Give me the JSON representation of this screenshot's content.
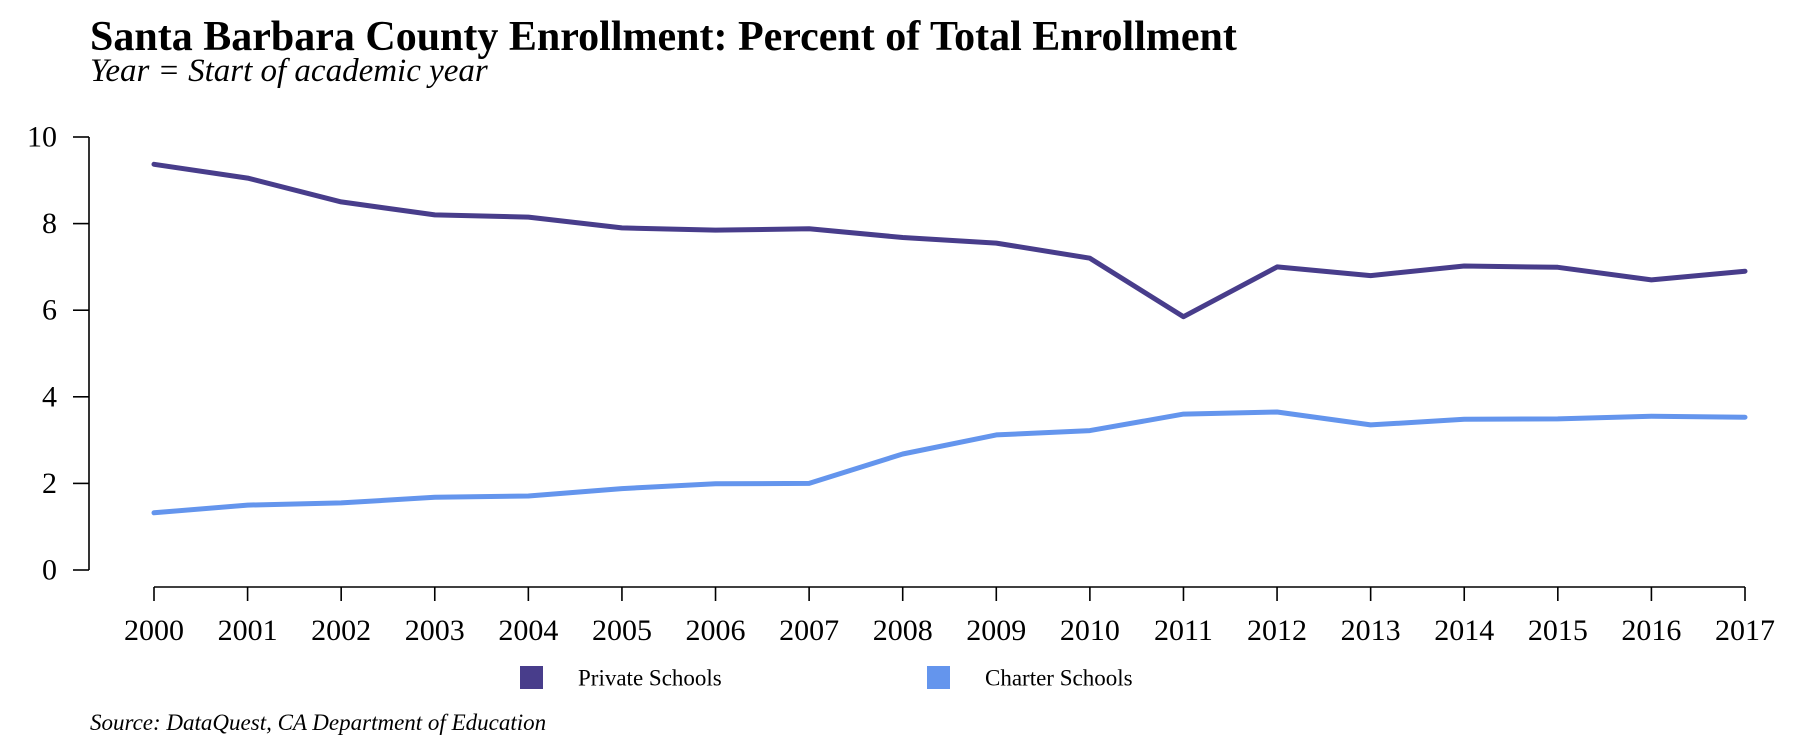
{
  "chart_data": {
    "type": "line",
    "title": "Santa Barbara County Enrollment: Percent of Total Enrollment",
    "subtitle": "Year = Start of academic year",
    "source": "Source: DataQuest, CA Department of Education",
    "xlabel": "",
    "ylabel": "",
    "x": [
      "2000",
      "2001",
      "2002",
      "2003",
      "2004",
      "2005",
      "2006",
      "2007",
      "2008",
      "2009",
      "2010",
      "2011",
      "2012",
      "2013",
      "2014",
      "2015",
      "2016",
      "2017"
    ],
    "ylim": [
      0,
      10
    ],
    "yticks": [
      "0",
      "2",
      "4",
      "6",
      "8",
      "10"
    ],
    "grid": false,
    "legend_position": "bottom",
    "series": [
      {
        "name": "Private Schools",
        "color": "#483D8B",
        "values": [
          9.37,
          9.05,
          8.5,
          8.2,
          8.15,
          7.9,
          7.85,
          7.88,
          7.68,
          7.55,
          7.2,
          5.85,
          7.0,
          6.8,
          7.02,
          6.99,
          6.7,
          6.9
        ]
      },
      {
        "name": "Charter Schools",
        "color": "#6495ED",
        "values": [
          1.32,
          1.5,
          1.55,
          1.68,
          1.71,
          1.88,
          1.99,
          2.0,
          2.68,
          3.12,
          3.22,
          3.6,
          3.65,
          3.35,
          3.48,
          3.49,
          3.55,
          3.53
        ]
      }
    ]
  }
}
